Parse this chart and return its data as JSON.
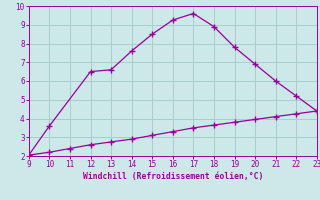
{
  "line1_x": [
    9,
    10,
    12,
    13,
    14,
    15,
    16,
    17,
    18,
    19,
    20,
    21,
    22,
    23
  ],
  "line1_y": [
    2.05,
    3.6,
    6.5,
    6.6,
    7.6,
    8.5,
    9.25,
    9.6,
    8.9,
    7.8,
    6.9,
    6.0,
    5.2,
    4.4
  ],
  "line2_x": [
    9,
    10,
    11,
    12,
    13,
    14,
    15,
    16,
    17,
    18,
    19,
    20,
    21,
    22,
    23
  ],
  "line2_y": [
    2.05,
    2.2,
    2.4,
    2.6,
    2.75,
    2.9,
    3.1,
    3.3,
    3.5,
    3.65,
    3.8,
    3.95,
    4.1,
    4.25,
    4.4
  ],
  "line_color": "#990099",
  "bg_color": "#cce8e8",
  "grid_color": "#aacccc",
  "xlabel": "Windchill (Refroidissement éolien,°C)",
  "xlim": [
    9,
    23
  ],
  "ylim": [
    2,
    10
  ],
  "xticks": [
    9,
    10,
    11,
    12,
    13,
    14,
    15,
    16,
    17,
    18,
    19,
    20,
    21,
    22,
    23
  ],
  "yticks": [
    2,
    3,
    4,
    5,
    6,
    7,
    8,
    9,
    10
  ],
  "xlabel_color": "#990099",
  "tick_color": "#990099",
  "marker": "+"
}
